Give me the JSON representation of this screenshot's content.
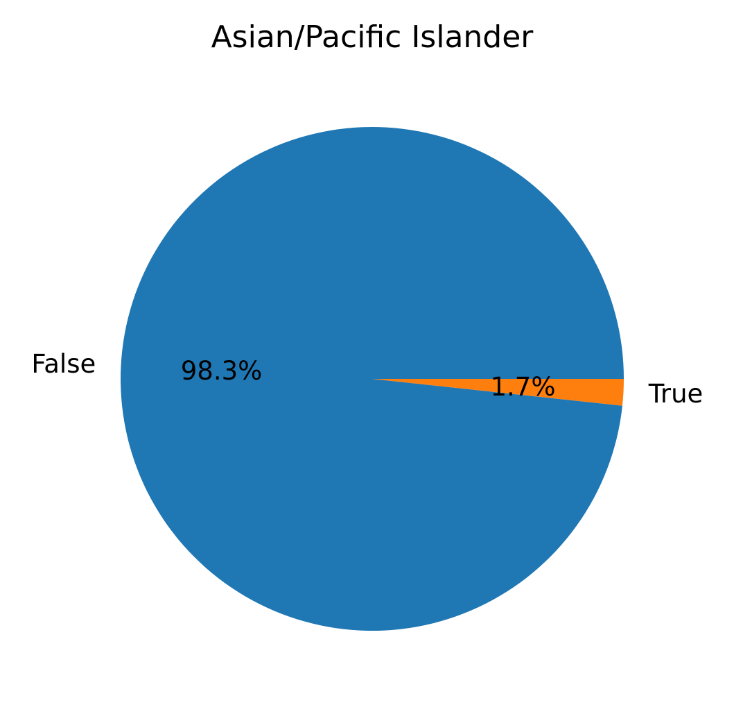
{
  "chart_data": {
    "type": "pie",
    "title": "Asian/Pacific Islander",
    "categories": [
      "False",
      "True"
    ],
    "values": [
      98.3,
      1.7
    ],
    "percent_labels": [
      "98.3%",
      "1.7%"
    ],
    "colors": [
      "#1f77b4",
      "#ff7f0e"
    ],
    "start_angle_deg": 0,
    "direction": "counterclockwise",
    "legend": "none"
  }
}
